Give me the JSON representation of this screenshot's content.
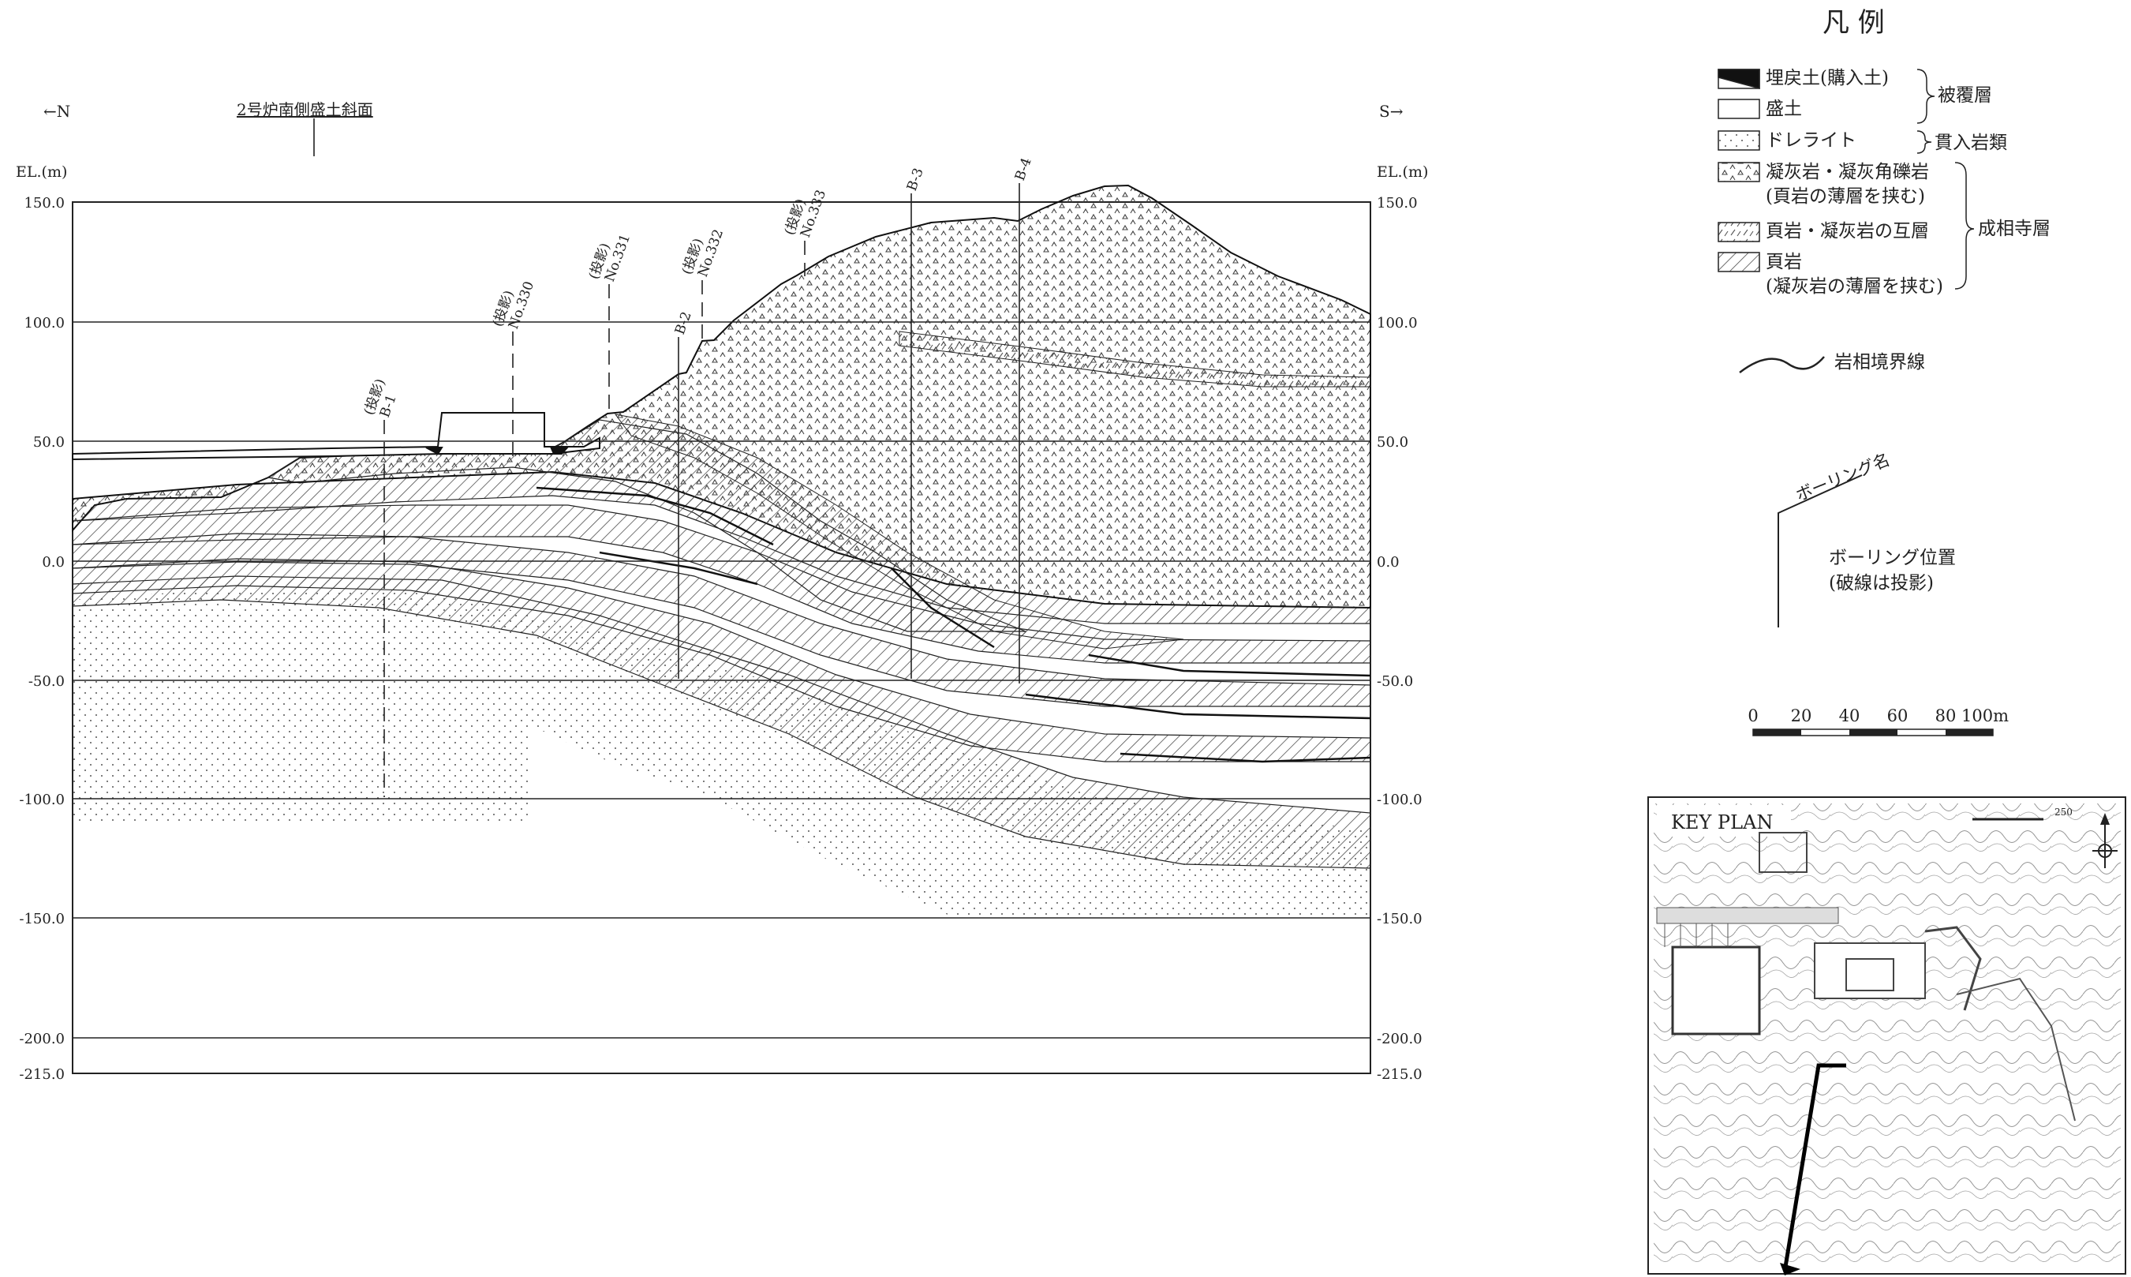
{
  "section": {
    "dir_left": "←N",
    "dir_right": "S→",
    "slope_label": "2号炉南側盛土斜面",
    "axis_title_left": "EL.(m)",
    "axis_title_right": "EL.(m)",
    "elevation_ticks": [
      "150.0",
      "100.0",
      "50.0",
      "0.0",
      "-50.0",
      "-100.0",
      "-150.0",
      "-200.0",
      "-215.0"
    ],
    "borings": [
      {
        "name": "B-1",
        "note": "(投影)"
      },
      {
        "name": "No.330",
        "note": "(投影)"
      },
      {
        "name": "No.331",
        "note": "(投影)"
      },
      {
        "name": "No.332",
        "note": "(投影)"
      },
      {
        "name": "B-2",
        "note": ""
      },
      {
        "name": "No.333",
        "note": "(投影)"
      },
      {
        "name": "B-3",
        "note": ""
      },
      {
        "name": "B-4",
        "note": ""
      }
    ]
  },
  "legend": {
    "title": "凡 例",
    "items": [
      {
        "label": "埋戻土(購入土)",
        "label2": "",
        "pattern": "solid-black"
      },
      {
        "label": "盛土",
        "label2": "",
        "pattern": "blank"
      },
      {
        "label": "ドレライト",
        "label2": "",
        "pattern": "dots"
      },
      {
        "label": "凝灰岩・凝灰角礫岩",
        "label2": "(頁岩の薄層を挟む)",
        "pattern": "tuff"
      },
      {
        "label": "頁岩・凝灰岩の互層",
        "label2": "",
        "pattern": "alternating"
      },
      {
        "label": "頁岩",
        "label2": "(凝灰岩の薄層を挟む)",
        "pattern": "hatch"
      }
    ],
    "groups": {
      "cover": "被覆層",
      "intrusive": "貫入岩類",
      "formation": "成相寺層"
    },
    "boundary_label": "岩相境界線",
    "boring_name_label": "ボーリング名",
    "boring_pos_label1": "ボーリング位置",
    "boring_pos_label2": "(破線は投影)"
  },
  "scale": {
    "ticks": [
      "0",
      "20",
      "40",
      "60",
      "80",
      "100m"
    ]
  },
  "keyplan": {
    "title": "KEY PLAN",
    "scale_label": "250"
  }
}
